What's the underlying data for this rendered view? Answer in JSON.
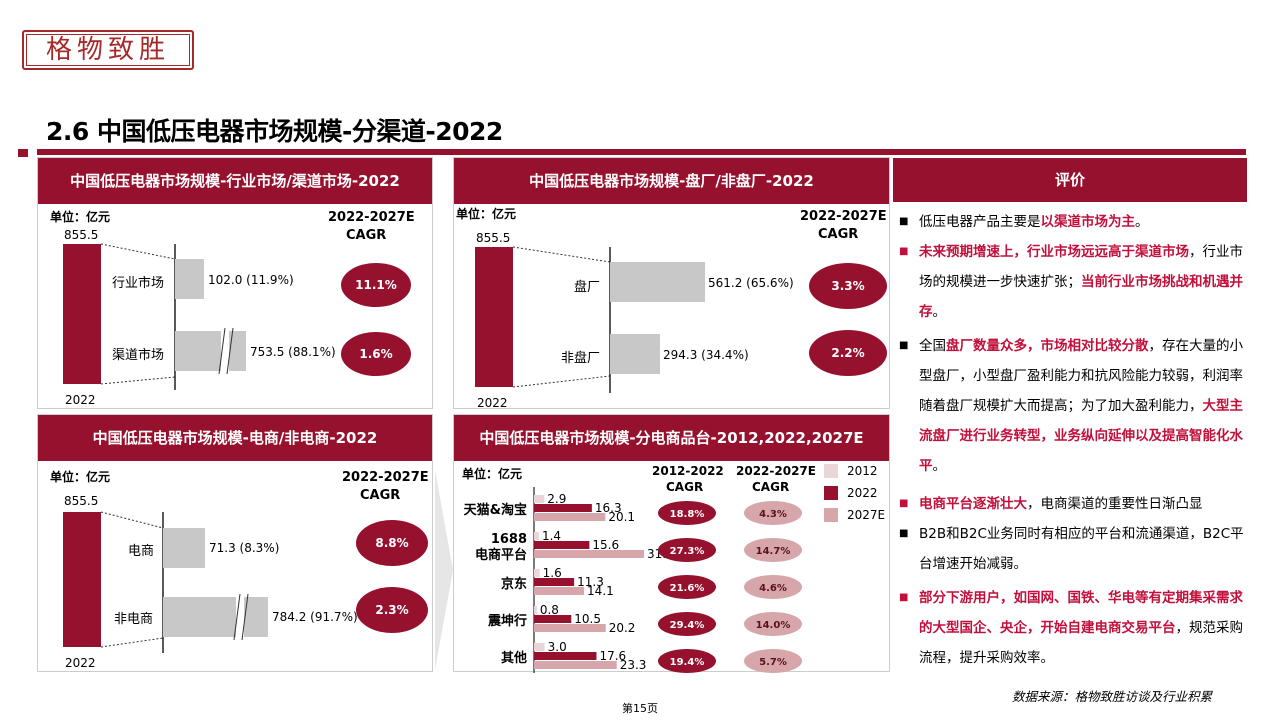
{
  "logo": "格物致胜",
  "page_title": "2.6 中国低压电器市场规模-分渠道-2022",
  "panels": {
    "p1": {
      "title": "中国低压电器市场规模-行业市场/渠道市场-2022",
      "unit": "单位：亿元",
      "cagr_label_1": "2022-2027E",
      "cagr_label_2": "CAGR",
      "total": "855.5",
      "year": "2022",
      "rows": [
        {
          "name": "行业市场",
          "value": "102.0 (11.9%)",
          "cagr": "11.1%"
        },
        {
          "name": "渠道市场",
          "value": "753.5 (88.1%)",
          "cagr": "1.6%"
        }
      ]
    },
    "p2": {
      "title": "中国低压电器市场规模-盘厂/非盘厂-2022",
      "unit": "单位：亿元",
      "cagr_label_1": "2022-2027E",
      "cagr_label_2": "CAGR",
      "total": "855.5",
      "year": "2022",
      "rows": [
        {
          "name": "盘厂",
          "value": "561.2 (65.6%)",
          "cagr": "3.3%"
        },
        {
          "name": "非盘厂",
          "value": "294.3 (34.4%)",
          "cagr": "2.2%"
        }
      ]
    },
    "p3": {
      "title": "中国低压电器市场规模-电商/非电商-2022",
      "unit": "单位：亿元",
      "cagr_label_1": "2022-2027E",
      "cagr_label_2": "CAGR",
      "total": "855.5",
      "year": "2022",
      "rows": [
        {
          "name": "电商",
          "value": "71.3 (8.3%)",
          "cagr": "8.8%"
        },
        {
          "name": "非电商",
          "value": "784.2 (91.7%)",
          "cagr": "2.3%"
        }
      ]
    },
    "p4": {
      "title": "中国低压电器市场规模-分电商品台-2012,2022,2027E",
      "unit": "单位：亿元",
      "cagr1_label_1": "2012-2022",
      "cagr1_label_2": "CAGR",
      "cagr2_label_1": "2022-2027E",
      "cagr2_label_2": "CAGR",
      "legend": [
        "2012",
        "2022",
        "2027E"
      ]
    }
  },
  "chart_data": [
    {
      "type": "bar",
      "title": "中国低压电器市场规模-行业市场/渠道市场-2022",
      "categories": [
        "2022",
        "行业市场",
        "渠道市场"
      ],
      "values": [
        855.5,
        102.0,
        753.5
      ],
      "shares": [
        "",
        "11.9%",
        "88.1%"
      ],
      "cagr_2022_2027E": [
        "",
        "11.1%",
        "1.6%"
      ]
    },
    {
      "type": "bar",
      "title": "中国低压电器市场规模-盘厂/非盘厂-2022",
      "categories": [
        "2022",
        "盘厂",
        "非盘厂"
      ],
      "values": [
        855.5,
        561.2,
        294.3
      ],
      "shares": [
        "",
        "65.6%",
        "34.4%"
      ],
      "cagr_2022_2027E": [
        "",
        "3.3%",
        "2.2%"
      ]
    },
    {
      "type": "bar",
      "title": "中国低压电器市场规模-电商/非电商-2022",
      "categories": [
        "2022",
        "电商",
        "非电商"
      ],
      "values": [
        855.5,
        71.3,
        784.2
      ],
      "shares": [
        "",
        "8.3%",
        "91.7%"
      ],
      "cagr_2022_2027E": [
        "",
        "8.8%",
        "2.3%"
      ]
    },
    {
      "type": "bar",
      "title": "中国低压电器市场规模-分电商品台-2012,2022,2027E",
      "categories": [
        "天猫&淘宝",
        "1688 电商平台",
        "京东",
        "震坤行",
        "其他"
      ],
      "labels": [
        [
          "天猫&淘宝"
        ],
        [
          "1688",
          "电商平台"
        ],
        [
          "京东"
        ],
        [
          "震坤行"
        ],
        [
          "其他"
        ]
      ],
      "series": [
        {
          "name": "2012",
          "values": [
            2.9,
            1.4,
            1.6,
            0.8,
            3.0
          ]
        },
        {
          "name": "2022",
          "values": [
            16.3,
            15.6,
            11.3,
            10.5,
            17.6
          ]
        },
        {
          "name": "2027E",
          "values": [
            20.1,
            31.0,
            14.1,
            20.2,
            23.3
          ]
        }
      ],
      "cagr_2012_2022": [
        "18.8%",
        "27.3%",
        "21.6%",
        "29.4%",
        "19.4%"
      ],
      "cagr_2022_2027E": [
        "4.3%",
        "14.7%",
        "4.6%",
        "14.0%",
        "5.7%"
      ],
      "colors": {
        "2012": "#ead6d8",
        "2022": "#96112e",
        "2027E": "#d7a6aa"
      }
    }
  ],
  "comment": {
    "title": "评价",
    "bullets": [
      {
        "segments": [
          {
            "text": "低压电器产品主要是",
            "hl": false
          },
          {
            "text": "以渠道市场为主",
            "hl": true
          },
          {
            "text": "。",
            "hl": false
          }
        ],
        "lines": 1,
        "top": 207
      },
      {
        "segments": [
          {
            "text": "未来预期增速上，行业市场远远高于渠道市场",
            "hl": true
          },
          {
            "text": "，行业市场的规模进一步快速扩张；",
            "hl": false
          },
          {
            "text": "当前行业市场挑战和机遇并存",
            "hl": true
          },
          {
            "text": "。",
            "hl": false
          }
        ],
        "lines": 3,
        "top": 237,
        "red_dot": true
      },
      {
        "segments": [
          {
            "text": "全国",
            "hl": false
          },
          {
            "text": "盘厂数量众多，市场相对比较分散",
            "hl": true
          },
          {
            "text": "，存在大量的小型盘厂，小型盘厂盈利能力和抗风险能力较弱，利润率随着盘厂规模扩大而提高；为了加大盈利能力，",
            "hl": false
          },
          {
            "text": "大型主流盘厂进行业务转型，业务纵向延伸以及提高智能化水平",
            "hl": true
          },
          {
            "text": "。",
            "hl": false
          }
        ],
        "lines": 5,
        "top": 331
      },
      {
        "segments": [
          {
            "text": "电商平台逐渐壮大",
            "hl": true
          },
          {
            "text": "，电商渠道的重要性日渐凸显",
            "hl": false
          }
        ],
        "lines": 1,
        "top": 489,
        "red_dot": true
      },
      {
        "segments": [
          {
            "text": "B2B和B2C业务同时有相应的平台和流通渠道，B2C平台增速开始减弱。",
            "hl": false
          }
        ],
        "lines": 2,
        "top": 519
      },
      {
        "segments": [
          {
            "text": "部分下游用户，如国网、国铁、华电等有定期集采需求的大型国企、央企，开始自建电商交易平台",
            "hl": true
          },
          {
            "text": "，规范采购流程，提升采购效率。",
            "hl": false
          }
        ],
        "lines": 3,
        "top": 583,
        "red_dot": true
      }
    ]
  },
  "source": "数据来源：格物致胜访谈及行业积累",
  "page_no": "第15页"
}
